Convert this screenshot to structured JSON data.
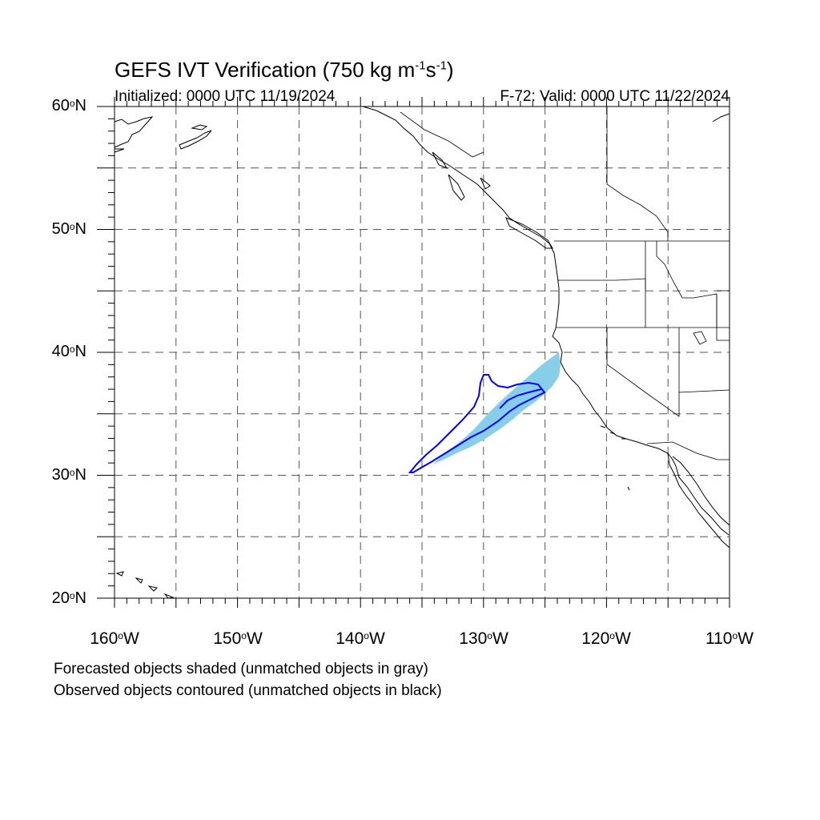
{
  "title": {
    "main": "GEFS IVT Verification (750 kg m",
    "exp1": "-1",
    "mid": "s",
    "exp2": "-1",
    "close": ")"
  },
  "initialized": "Initialized: 0000 UTC 11/19/2024",
  "valid": "F-72: Valid: 0000 UTC 11/22/2024",
  "latitude_labels": [
    {
      "value": 60,
      "label": "60",
      "suffix": "N"
    },
    {
      "value": 50,
      "label": "50",
      "suffix": "N"
    },
    {
      "value": 40,
      "label": "40",
      "suffix": "N"
    },
    {
      "value": 30,
      "label": "30",
      "suffix": "N"
    },
    {
      "value": 20,
      "label": "20",
      "suffix": "N"
    }
  ],
  "longitude_labels": [
    {
      "value": -160,
      "label": "160",
      "suffix": "W"
    },
    {
      "value": -150,
      "label": "150",
      "suffix": "W"
    },
    {
      "value": -140,
      "label": "140",
      "suffix": "W"
    },
    {
      "value": -130,
      "label": "130",
      "suffix": "W"
    },
    {
      "value": -120,
      "label": "120",
      "suffix": "W"
    },
    {
      "value": -110,
      "label": "110",
      "suffix": "W"
    }
  ],
  "notes": [
    "Forecasted objects shaded (unmatched objects in gray)",
    "Observed objects contoured (unmatched objects in black)"
  ],
  "map": {
    "lon_range": [
      -160,
      -110
    ],
    "lat_range": [
      20,
      60
    ],
    "grid_step_deg": 5,
    "forecast_color": "#87ceeb",
    "observed_color": "#0000ff"
  }
}
